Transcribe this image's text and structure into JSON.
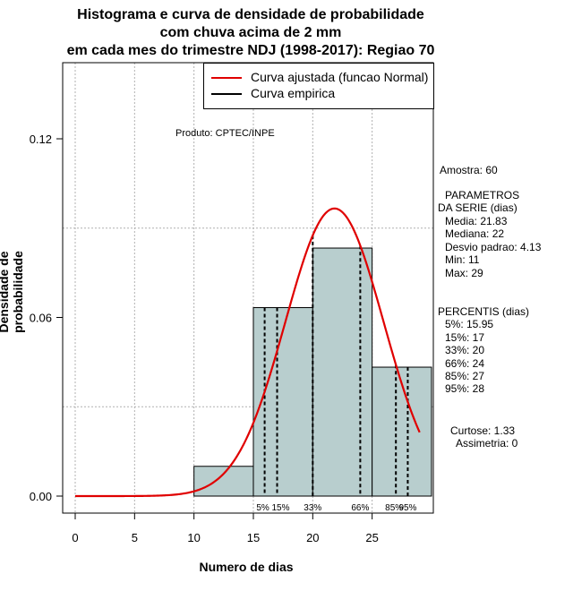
{
  "title": {
    "line1": "Histograma e curva de densidade de probabilidade",
    "line2": "com chuva acima de 2 mm",
    "line3": "em cada mes do trimestre NDJ (1998-2017): Regiao 70"
  },
  "product_note": "Produto: CPTEC/INPE",
  "legend": {
    "normal": "Curva ajustada (funcao Normal)",
    "empirical": "Curva empirica"
  },
  "side_panel": {
    "amostra": "Amostra: 60",
    "parametros_title1": "PARAMETROS",
    "parametros_title2": "DA SERIE (dias)",
    "media": "Media: 21.83",
    "mediana": "Mediana: 22",
    "desvio": "Desvio padrao: 4.13",
    "min": "Min: 11",
    "max": "Max: 29",
    "percentis_title": "PERCENTIS (dias)",
    "p5": "5%: 15.95",
    "p15": "15%: 17",
    "p33": "33%: 20",
    "p66": "66%: 24",
    "p85": "85%: 27",
    "p95": "95%: 28",
    "curtose": "Curtose: 1.33",
    "assimetria": "Assimetria: 0"
  },
  "colors": {
    "bar_fill": "#b8cece",
    "normal_curve": "#e00000",
    "grid": "#b0b0b0"
  },
  "chart_data": {
    "type": "bar",
    "xlabel": "Numero de dias",
    "ylabel": "Densidade de probabilidade",
    "xlim": [
      -1,
      30
    ],
    "ylim": [
      0,
      0.15
    ],
    "x_ticks": [
      0,
      5,
      10,
      15,
      20,
      25
    ],
    "y_ticks": [
      0.0,
      0.06,
      0.12
    ],
    "y_tick_labels": [
      "0.00",
      "0.06",
      "0.12"
    ],
    "grid": true,
    "legend_position": "top-right",
    "bins": [
      {
        "from": 10,
        "to": 15,
        "density": 0.01
      },
      {
        "from": 15,
        "to": 20,
        "density": 0.0633
      },
      {
        "from": 20,
        "to": 25,
        "density": 0.0833
      },
      {
        "from": 25,
        "to": 30,
        "density": 0.0433
      }
    ],
    "normal_fit": {
      "mean": 21.83,
      "sd": 4.13,
      "x_from": 0,
      "x_to": 29
    },
    "percentiles": [
      {
        "label": "5%",
        "value": 15.95
      },
      {
        "label": "15%",
        "value": 17
      },
      {
        "label": "33%",
        "value": 20
      },
      {
        "label": "66%",
        "value": 24
      },
      {
        "label": "85%",
        "value": 27
      },
      {
        "label": "95%",
        "value": 28
      }
    ]
  }
}
